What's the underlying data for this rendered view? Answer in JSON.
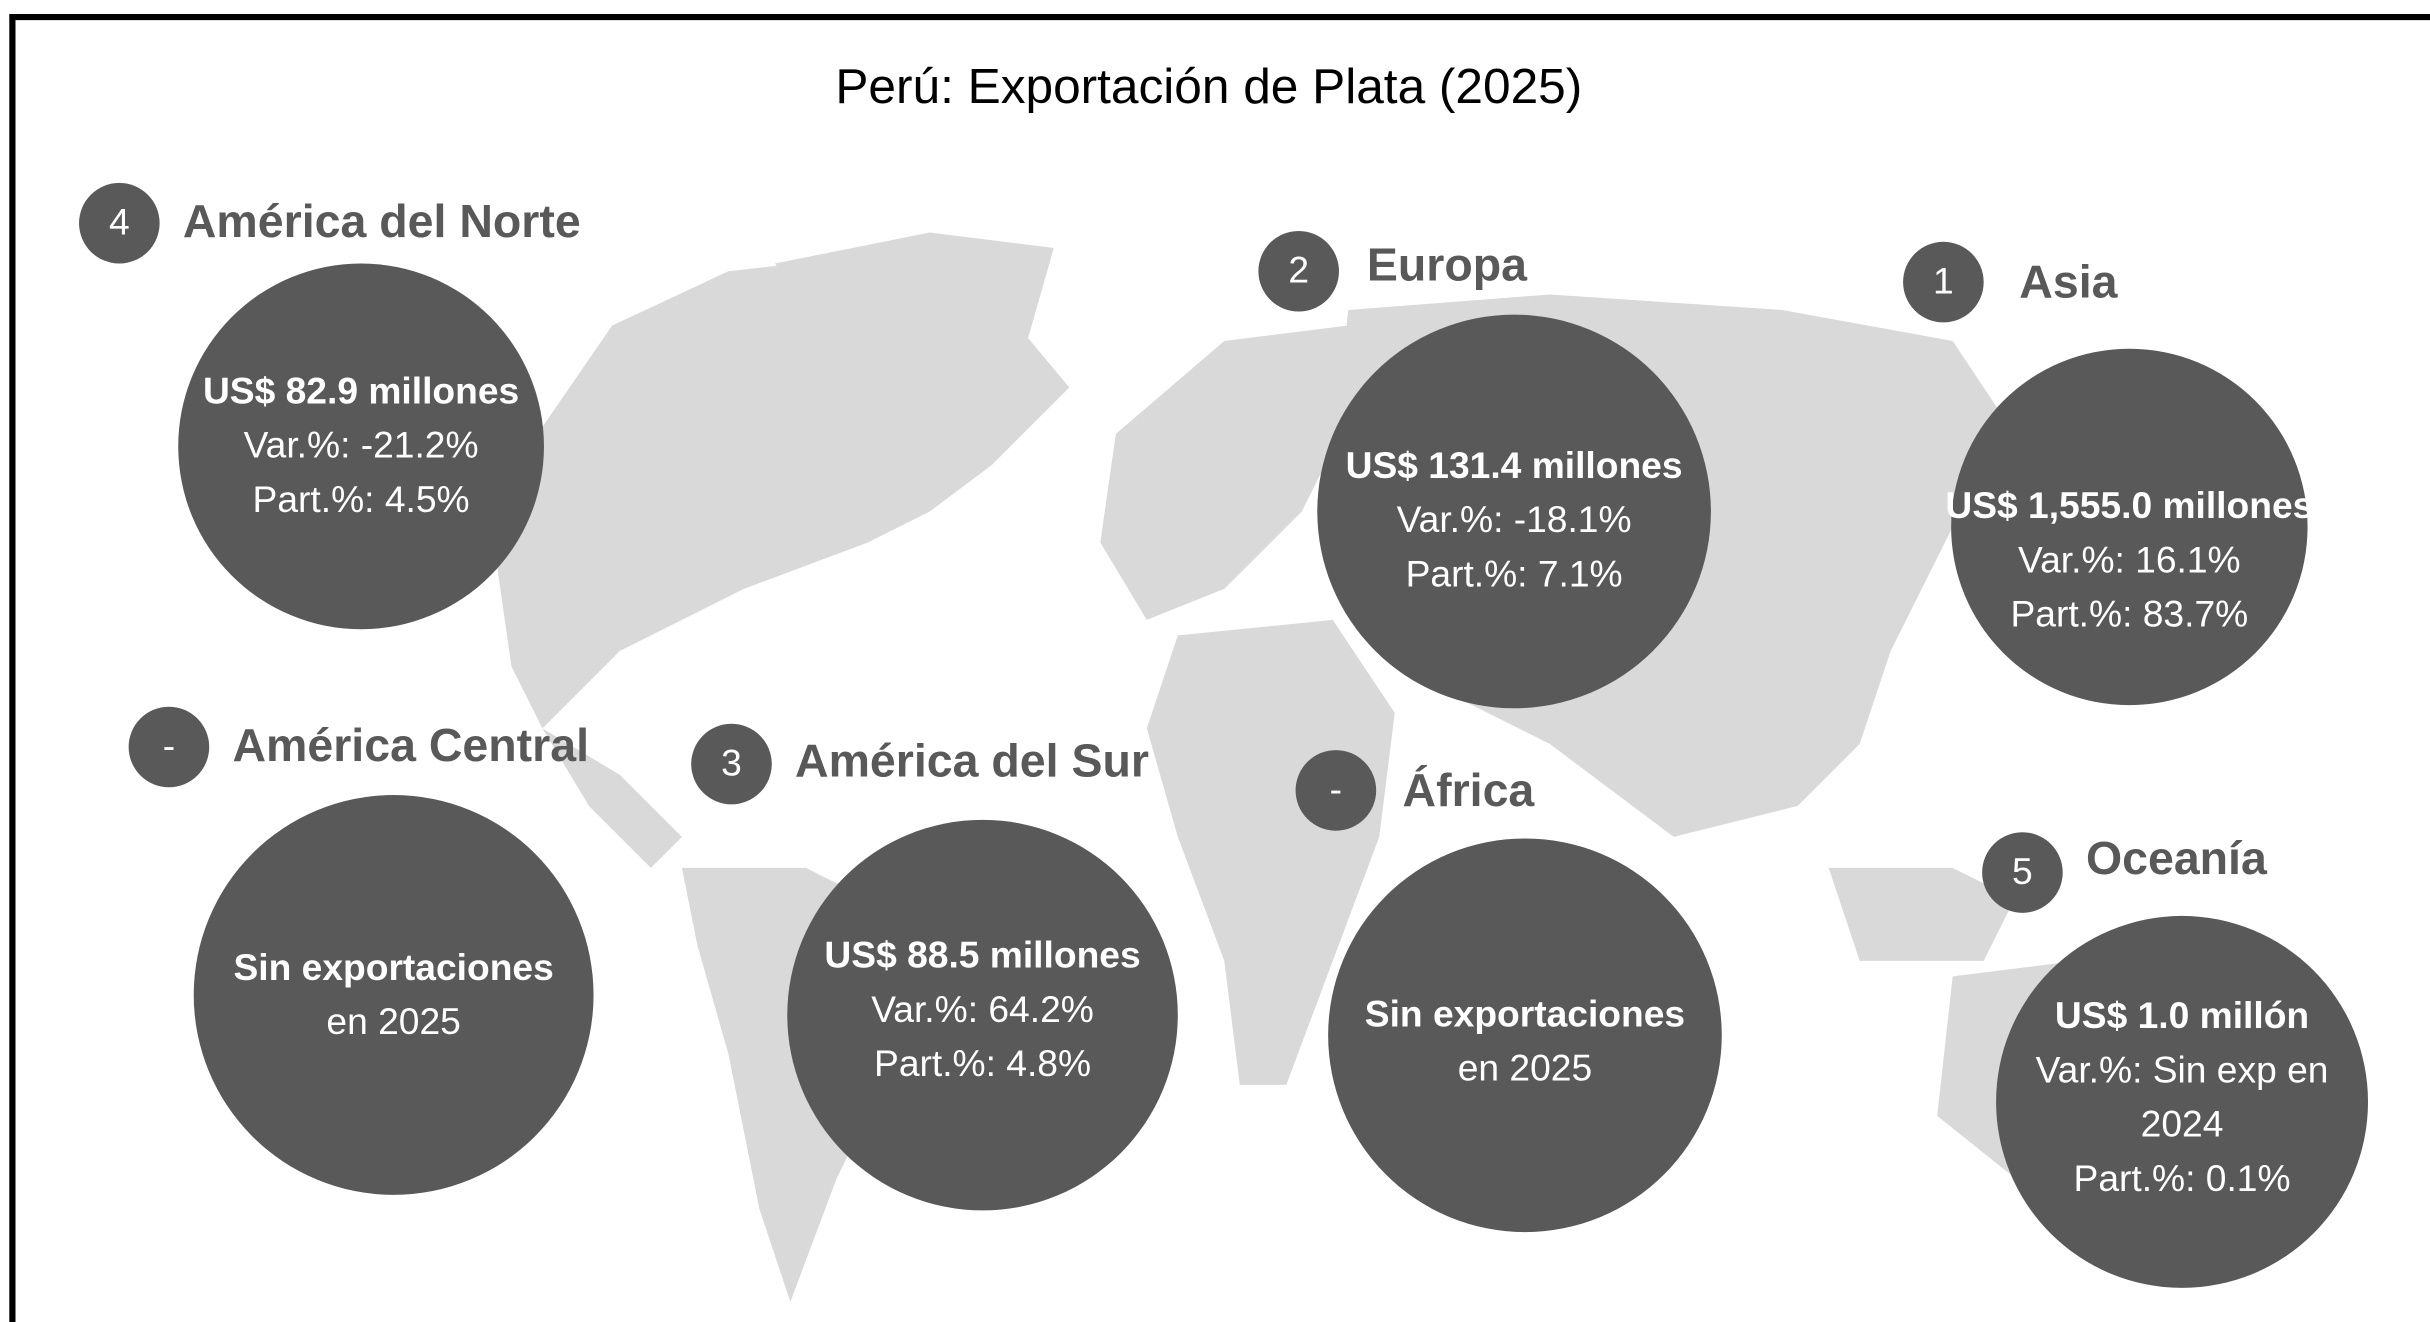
{
  "title": "Perú: Exportación de Plata (2025)",
  "regions": [
    {
      "rank": "4",
      "name": "América del Norte",
      "lines": [
        "US$ 82.9 millones",
        "Var.%: -21.2%",
        "Part.%: 4.5%"
      ]
    },
    {
      "rank": "2",
      "name": "Europa",
      "lines": [
        "US$ 131.4 millones",
        "Var.%: -18.1%",
        "Part.%: 7.1%"
      ]
    },
    {
      "rank": "1",
      "name": "Asia",
      "lines": [
        "US$ 1,555.0 millones",
        "Var.%: 16.1%",
        "Part.%: 83.7%"
      ]
    },
    {
      "rank": "-",
      "name": "América Central",
      "lines": [
        "Sin exportaciones",
        "en 2025"
      ]
    },
    {
      "rank": "3",
      "name": "América del Sur",
      "lines": [
        "US$ 88.5 millones",
        "Var.%: 64.2%",
        "Part.%: 4.8%"
      ]
    },
    {
      "rank": "-",
      "name": "África",
      "lines": [
        "Sin exportaciones",
        "en 2025"
      ]
    },
    {
      "rank": "5",
      "name": "Oceanía",
      "lines": [
        "US$ 1.0 millón",
        "Var.%: Sin exp en",
        "2024",
        "Part.%: 0.1%"
      ]
    }
  ]
}
